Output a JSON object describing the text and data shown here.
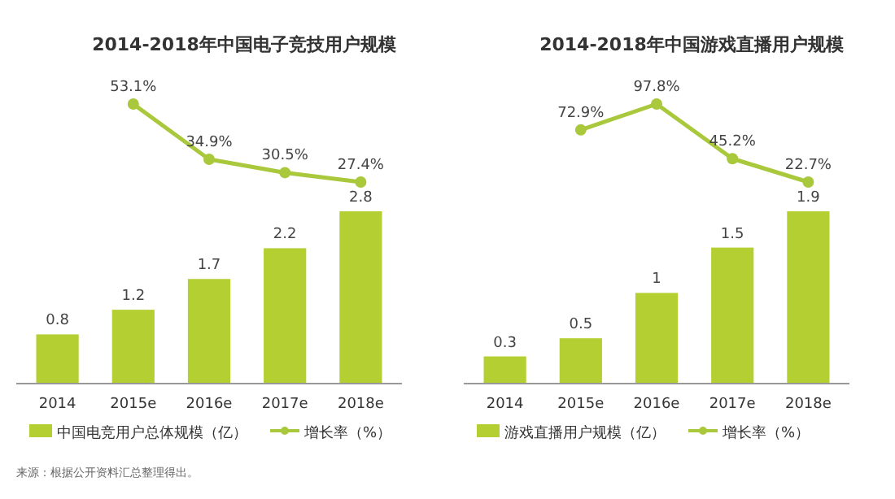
{
  "chart_data": [
    {
      "type": "line",
      "title": "2014-2018年中国电子竞技用户规模",
      "categories": [
        null,
        null,
        null,
        null,
        null
      ],
      "legend": "bottom",
      "marker": "circle",
      "series": [
        {
          "name": "增长率（%）",
          "color": "#a9c83b",
          "values": [
            null,
            53.1,
            34.9,
            30.5,
            27.4
          ],
          "value_labels": [
            null,
            "53.1%",
            "34.9%",
            "30.5%",
            "27.4%"
          ]
        }
      ]
    },
    {
      "type": "bar",
      "categories": [
        "2014",
        "2015e",
        "2016e",
        "2017e",
        "2018e"
      ],
      "data_labels": true,
      "legend": "bottom",
      "series": [
        {
          "name": "中国电竞用户总体规模（亿）",
          "color": "#b3cf31",
          "values": [
            0.8,
            1.2,
            1.7,
            2.2,
            2.8
          ]
        }
      ],
      "annotations": [
        "来源：根据公开资料汇总整理得出。"
      ]
    },
    {
      "type": "line",
      "title": "2014-2018年中国游戏直播用户规模",
      "categories": [
        null,
        null,
        null,
        null,
        null
      ],
      "legend": "bottom",
      "marker": "circle",
      "series": [
        {
          "name": "增长率（%）",
          "color": "#a9c83b",
          "values": [
            null,
            72.9,
            97.8,
            45.2,
            22.7
          ],
          "value_labels": [
            null,
            "72.9%",
            "97.8%",
            "45.2%",
            "22.7%"
          ]
        }
      ]
    },
    {
      "type": "bar",
      "categories": [
        "2014",
        "2015e",
        "2016e",
        "2017e",
        "2018e"
      ],
      "data_labels": true,
      "legend": "bottom",
      "series": [
        {
          "name": "游戏直播用户规模（亿）",
          "color": "#b3cf31",
          "values": [
            0.3,
            0.5,
            1.0,
            1.5,
            1.9
          ]
        }
      ]
    }
  ]
}
